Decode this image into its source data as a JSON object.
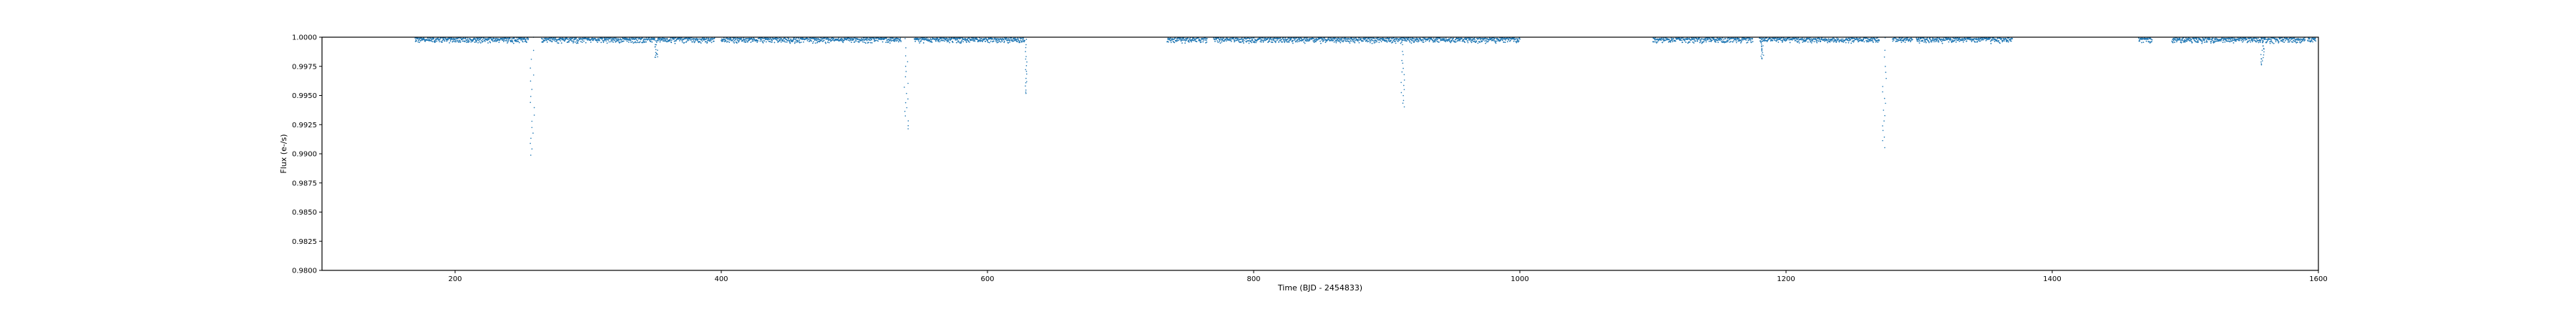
{
  "chart_data": {
    "type": "scatter",
    "title": "",
    "xlabel": "Time (BJD - 2454833)",
    "ylabel": "Flux (e-/s)",
    "xlim": [
      100,
      1600
    ],
    "ylim": [
      0.98,
      1.0
    ],
    "x_ticks": [
      200,
      400,
      600,
      800,
      1000,
      1200,
      1400,
      1600
    ],
    "x_tick_labels": [
      "200",
      "400",
      "600",
      "800",
      "1000",
      "1200",
      "1400",
      "1600"
    ],
    "y_ticks": [
      0.98,
      0.9825,
      0.985,
      0.9875,
      0.99,
      0.9925,
      0.995,
      0.9975,
      1.0
    ],
    "y_tick_labels": [
      "0.9800",
      "0.9825",
      "0.9850",
      "0.9875",
      "0.9900",
      "0.9925",
      "0.9950",
      "0.9975",
      "1.0000"
    ],
    "grid": false,
    "marker_color": "#1f77b4",
    "observation_segments": [
      [
        170,
        255
      ],
      [
        265,
        350
      ],
      [
        352,
        395
      ],
      [
        400,
        535
      ],
      [
        545,
        628
      ],
      [
        735,
        765
      ],
      [
        770,
        1000
      ],
      [
        1100,
        1175
      ],
      [
        1180,
        1270
      ],
      [
        1280,
        1295
      ],
      [
        1298,
        1370
      ],
      [
        1465,
        1475
      ],
      [
        1490,
        1590
      ],
      [
        1592,
        1598
      ]
    ],
    "dips": [
      {
        "x": 258,
        "depth": 0.01,
        "halfwidth": 1.5
      },
      {
        "x": 351,
        "depth": 0.0017,
        "halfwidth": 1.2
      },
      {
        "x": 539,
        "depth": 0.0078,
        "halfwidth": 1.5
      },
      {
        "x": 629,
        "depth": 0.0048,
        "halfwidth": 0.6
      },
      {
        "x": 912,
        "depth": 0.0058,
        "halfwidth": 1.5
      },
      {
        "x": 1182,
        "depth": 0.0018,
        "halfwidth": 1.2
      },
      {
        "x": 1274,
        "depth": 0.0093,
        "halfwidth": 1.5
      },
      {
        "x": 1558,
        "depth": 0.0022,
        "halfwidth": 1.2
      }
    ]
  }
}
